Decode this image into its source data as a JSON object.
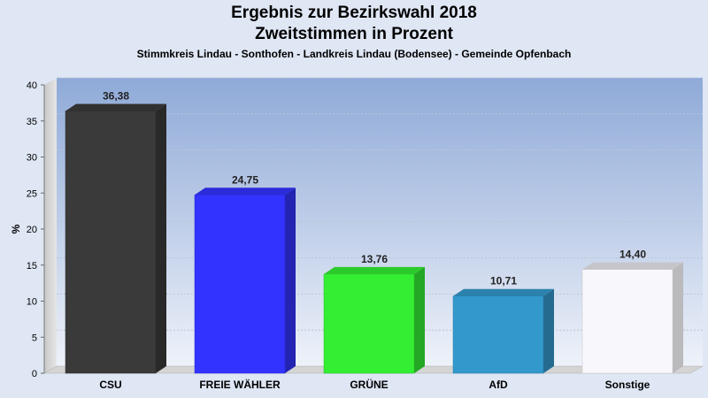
{
  "chart_data": {
    "type": "bar",
    "title": "Ergebnis zur Bezirkswahl 2018",
    "title_line2": "Zweitstimmen in Prozent",
    "subtitle": "Stimmkreis Lindau - Sonthofen - Landkreis Lindau (Bodensee) - Gemeinde Opfenbach",
    "ylabel": "%",
    "xlabel": "",
    "ylim": [
      0,
      40
    ],
    "yticks": [
      0,
      5,
      10,
      15,
      20,
      25,
      30,
      35,
      40
    ],
    "ytick_labels": [
      "0",
      "5",
      "10",
      "15",
      "20",
      "25",
      "30",
      "35",
      "40"
    ],
    "categories": [
      "CSU",
      "FREIE WÄHLER",
      "GRÜNE",
      "AfD",
      "Sonstige"
    ],
    "values": [
      36.38,
      24.75,
      13.76,
      10.71,
      14.4
    ],
    "value_labels": [
      "36,38",
      "24,75",
      "13,76",
      "10,71",
      "14,40"
    ],
    "colors": [
      "#3a3a3a",
      "#3333ff",
      "#33ee33",
      "#3399cc",
      "#f8f8fc"
    ],
    "grid": true,
    "legend": "none"
  }
}
